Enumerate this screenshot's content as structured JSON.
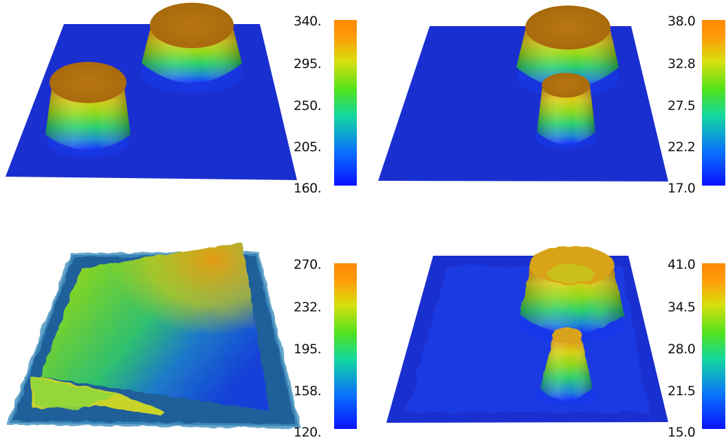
{
  "colors": {
    "background": "#ffffff",
    "plane_blue": "#1a2fd0",
    "plane_teal": "#1f5f9a",
    "cap_orange": "#b8730e",
    "colorbar_stops": [
      "#0a18ff",
      "#0a6cff",
      "#13d6a6",
      "#5ae31e",
      "#d8e00d",
      "#ff9b0a",
      "#ff8a05"
    ]
  },
  "panels": [
    {
      "id": "top-left",
      "description_kind": "two-cylinders-smooth",
      "colorbar": {
        "ticks": [
          "340.",
          "295.",
          "250.",
          "205.",
          "160."
        ],
        "min": 160,
        "max": 340
      }
    },
    {
      "id": "top-right",
      "description_kind": "two-cylinders-smooth",
      "colorbar": {
        "ticks": [
          "38.0",
          "32.8",
          "27.5",
          "22.2",
          "17.0"
        ],
        "min": 17.0,
        "max": 38.0
      }
    },
    {
      "id": "bottom-left",
      "description_kind": "noisy-slab",
      "colorbar": {
        "ticks": [
          "270.",
          "232.",
          "195.",
          "158.",
          "120."
        ],
        "min": 120,
        "max": 270
      }
    },
    {
      "id": "bottom-right",
      "description_kind": "two-cylinders-noisy",
      "colorbar": {
        "ticks": [
          "41.0",
          "34.5",
          "28.0",
          "21.5",
          "15.0"
        ],
        "min": 15.0,
        "max": 41.0
      }
    }
  ]
}
